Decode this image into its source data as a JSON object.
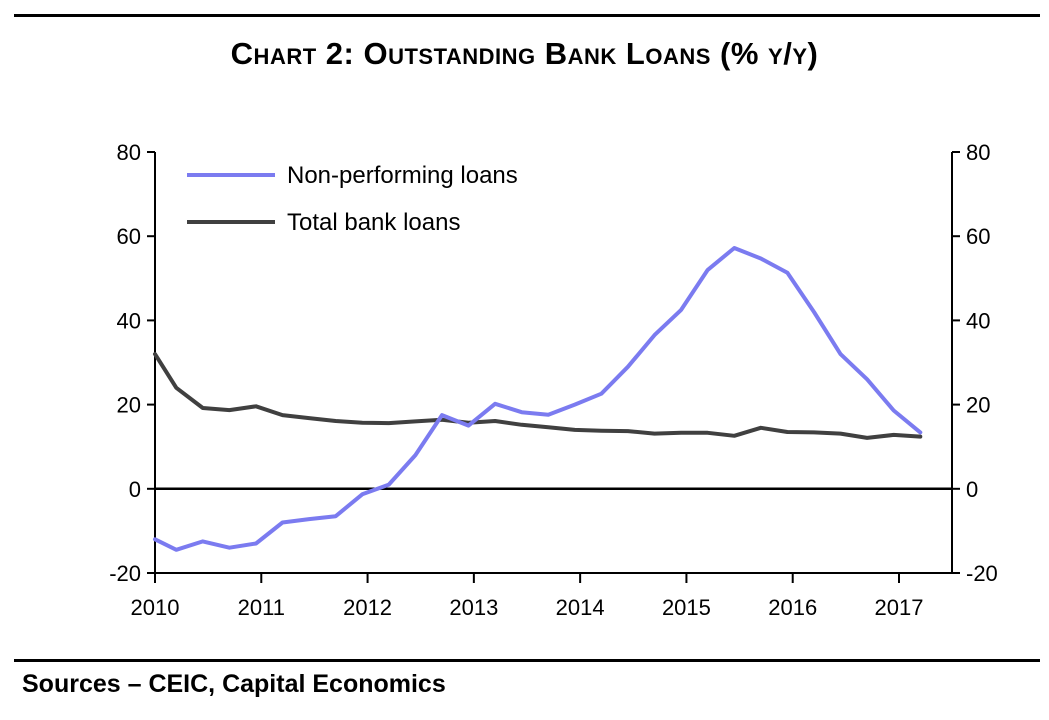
{
  "header": {
    "title": "Chart 2: Outstanding Bank Loans (% y/y)"
  },
  "footer": {
    "sources": "Sources – CEIC, Capital Economics"
  },
  "colors": {
    "npl": "#7b7bf0",
    "total": "#404040",
    "axis": "#000000"
  },
  "chart_data": {
    "type": "line",
    "title": "Chart 2: Outstanding Bank Loans (% y/y)",
    "xlabel": "",
    "ylabel": "",
    "ylim": [
      -20,
      80
    ],
    "xlim": [
      2010,
      2017.4
    ],
    "y_ticks": [
      80,
      60,
      40,
      20,
      0,
      -20
    ],
    "x_ticks": [
      2010,
      2011,
      2012,
      2013,
      2014,
      2015,
      2016,
      2017
    ],
    "legend_position": "top-left",
    "grid": false,
    "series": [
      {
        "name": "Non-performing loans",
        "color": "#7b7bf0",
        "x": [
          2010.0,
          2010.2,
          2010.45,
          2010.7,
          2010.95,
          2011.2,
          2011.45,
          2011.7,
          2011.95,
          2012.2,
          2012.45,
          2012.7,
          2012.95,
          2013.2,
          2013.45,
          2013.7,
          2013.95,
          2014.2,
          2014.45,
          2014.7,
          2014.95,
          2015.2,
          2015.45,
          2015.7,
          2015.95,
          2016.2,
          2016.45,
          2016.7,
          2016.95,
          2017.2
        ],
        "values": [
          -12,
          -14.5,
          -12.5,
          -14,
          -13,
          -8,
          -7.2,
          -6.5,
          -1.3,
          1,
          8,
          17.5,
          15,
          20.2,
          18.2,
          17.6,
          20,
          22.6,
          29,
          36.5,
          42.5,
          52,
          57.2,
          54.7,
          51.3,
          42,
          32,
          26,
          18.6,
          13.4
        ]
      },
      {
        "name": "Total bank loans",
        "color": "#404040",
        "x": [
          2010.0,
          2010.2,
          2010.45,
          2010.7,
          2010.95,
          2011.2,
          2011.45,
          2011.7,
          2011.95,
          2012.2,
          2012.45,
          2012.7,
          2012.95,
          2013.2,
          2013.45,
          2013.7,
          2013.95,
          2014.2,
          2014.45,
          2014.7,
          2014.95,
          2015.2,
          2015.45,
          2015.7,
          2015.95,
          2016.2,
          2016.45,
          2016.7,
          2016.95,
          2017.2
        ],
        "values": [
          32,
          24,
          19.2,
          18.7,
          19.6,
          17.5,
          16.8,
          16.1,
          15.7,
          15.6,
          16,
          16.4,
          15.7,
          16.1,
          15.2,
          14.6,
          14,
          13.8,
          13.7,
          13.1,
          13.3,
          13.3,
          12.6,
          14.5,
          13.5,
          13.4,
          13.1,
          12.1,
          12.8,
          12.4
        ]
      }
    ]
  }
}
